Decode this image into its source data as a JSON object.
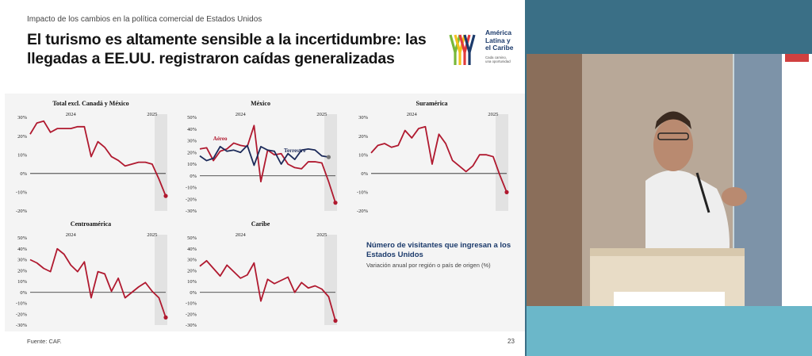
{
  "slide": {
    "kicker": "Impacto de los cambios en la política comercial de Estados Unidos",
    "headline": "El turismo es altamente sensible a la incertidumbre: las llegadas a EE.UU. registraron caídas generalizadas",
    "logo": {
      "name_lines": [
        "América",
        "Latina y",
        "el Caribe"
      ],
      "tagline_lines": [
        "Cada camino,",
        "una oportunidad"
      ]
    },
    "legend_title": "Número de visitantes que ingresan a los Estados Unidos",
    "legend_subtitle": "Variación anual por región o país de origen (%)",
    "source": "Fuente: CAF.",
    "page_number": "23"
  },
  "colors": {
    "series_red": "#b0192f",
    "series_navy": "#1d2b5a",
    "shade": "#e2e2e2",
    "logo_green": "#78b83a",
    "logo_yellow": "#f2c21b",
    "logo_red": "#e23b3b",
    "logo_blue": "#1b3a6b"
  },
  "chart_data": [
    {
      "type": "line",
      "title": "Total excl. Canadá y México",
      "year_labels": [
        "2024",
        "2025"
      ],
      "ylim": [
        -20,
        30
      ],
      "yticks": [
        30,
        20,
        10,
        0,
        -10,
        -20
      ],
      "tick_labels": [
        "30%",
        "20%",
        "10%",
        "0%",
        "-10%",
        "-20%"
      ],
      "series": [
        {
          "values": [
            21,
            27,
            28,
            22,
            24,
            24,
            24,
            25,
            25,
            9,
            17,
            14,
            9,
            7,
            4,
            5,
            6,
            6,
            5,
            -3,
            -12
          ]
        }
      ]
    },
    {
      "type": "line",
      "title": "México",
      "year_labels": [
        "2024",
        "2025"
      ],
      "ylim": [
        -30,
        50
      ],
      "yticks": [
        50,
        40,
        30,
        20,
        10,
        0,
        -10,
        -20,
        -30
      ],
      "tick_labels": [
        "50%",
        "40%",
        "30%",
        "20%",
        "10%",
        "0%",
        "-10%",
        "-20%",
        "-30%"
      ],
      "series": [
        {
          "name": "Aéreo",
          "values": [
            23,
            24,
            13,
            21,
            23,
            28,
            26,
            25,
            43,
            -5,
            22,
            18,
            19,
            10,
            7,
            6,
            12,
            12,
            11,
            -5,
            -23
          ]
        },
        {
          "name": "Terrestre",
          "values": [
            17,
            13,
            15,
            25,
            21,
            22,
            20,
            26,
            9,
            25,
            22,
            21,
            10,
            19,
            14,
            22,
            23,
            22,
            17,
            16
          ]
        }
      ]
    },
    {
      "type": "line",
      "title": "Suramérica",
      "year_labels": [
        "2024",
        "2025"
      ],
      "ylim": [
        -20,
        30
      ],
      "yticks": [
        30,
        20,
        10,
        0,
        -10,
        -20
      ],
      "tick_labels": [
        "30%",
        "20%",
        "10%",
        "0%",
        "-10%",
        "-20%"
      ],
      "series": [
        {
          "values": [
            11,
            15,
            16,
            14,
            15,
            23,
            19,
            24,
            25,
            5,
            21,
            16,
            7,
            4,
            1,
            4,
            10,
            10,
            9,
            -1,
            -10
          ]
        }
      ]
    },
    {
      "type": "line",
      "title": "Centroamérica",
      "year_labels": [
        "2024",
        "2025"
      ],
      "ylim": [
        -30,
        50
      ],
      "yticks": [
        50,
        40,
        30,
        20,
        10,
        0,
        -10,
        -20,
        -30
      ],
      "tick_labels": [
        "50%",
        "40%",
        "30%",
        "20%",
        "10%",
        "0%",
        "-10%",
        "-20%",
        "-30%"
      ],
      "series": [
        {
          "values": [
            30,
            27,
            22,
            19,
            40,
            35,
            25,
            19,
            28,
            -5,
            19,
            17,
            1,
            13,
            -5,
            0,
            5,
            9,
            1,
            -5,
            -23
          ]
        }
      ]
    },
    {
      "type": "line",
      "title": "Caribe",
      "year_labels": [
        "2024",
        "2025"
      ],
      "ylim": [
        -30,
        50
      ],
      "yticks": [
        50,
        40,
        30,
        20,
        10,
        0,
        -10,
        -20,
        -30
      ],
      "tick_labels": [
        "50%",
        "40%",
        "30%",
        "20%",
        "10%",
        "0%",
        "-10%",
        "-20%",
        "-30%"
      ],
      "series": [
        {
          "values": [
            24,
            29,
            22,
            15,
            25,
            19,
            13,
            16,
            27,
            -8,
            12,
            8,
            11,
            14,
            0,
            9,
            4,
            6,
            3,
            -4,
            -26
          ]
        }
      ]
    }
  ]
}
